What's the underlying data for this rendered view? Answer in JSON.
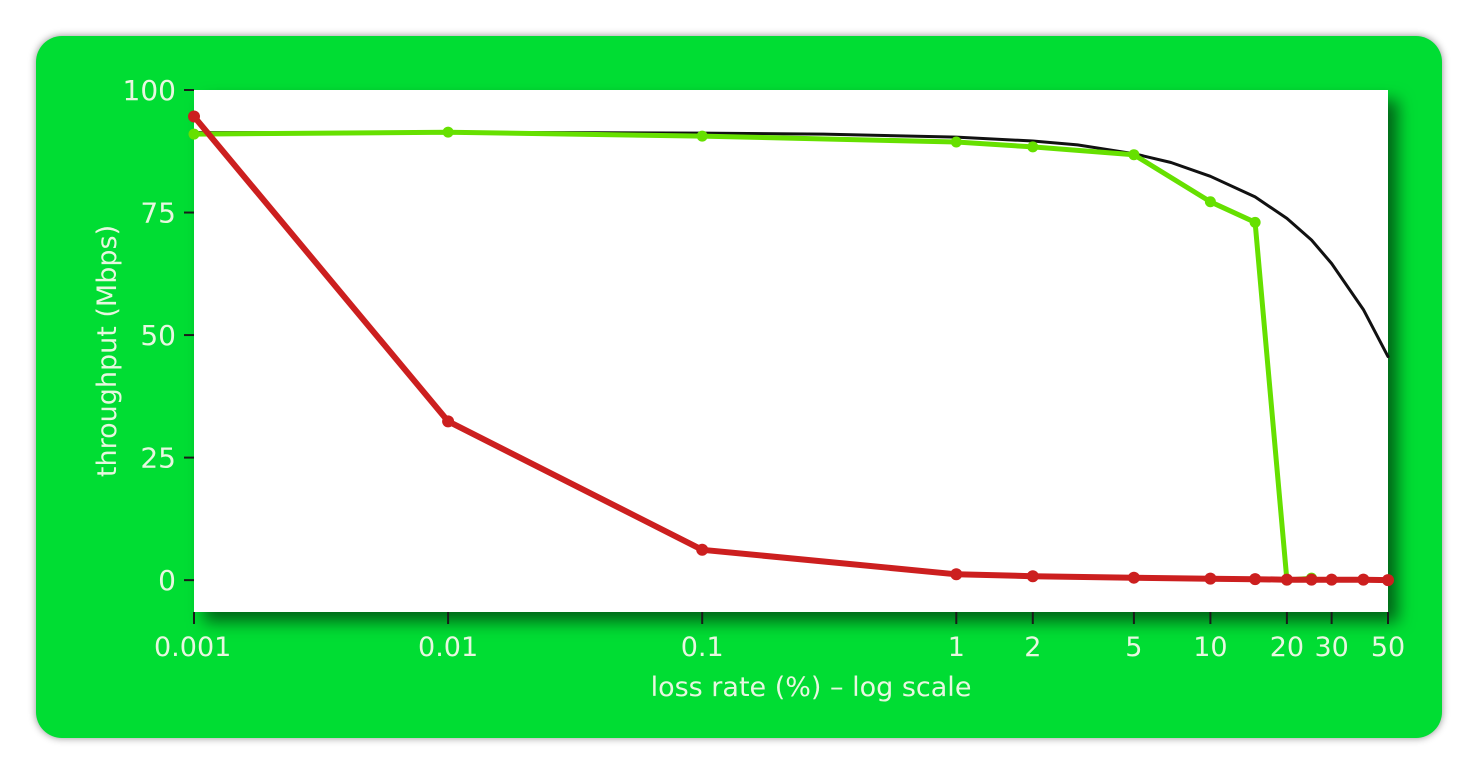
{
  "chart_data": {
    "type": "line",
    "title": "",
    "xlabel": "loss rate (%) – log scale",
    "ylabel": "throughput (Mbps)",
    "x_scale": "log",
    "xlim": [
      0.001,
      50
    ],
    "ylim": [
      -6.5,
      100
    ],
    "grid": false,
    "x_ticks": [
      {
        "value": 0.001,
        "label": "0.001"
      },
      {
        "value": 0.01,
        "label": "0.01"
      },
      {
        "value": 0.1,
        "label": "0.1"
      },
      {
        "value": 1,
        "label": "1"
      },
      {
        "value": 2,
        "label": "2"
      },
      {
        "value": 5,
        "label": "5"
      },
      {
        "value": 10,
        "label": "10"
      },
      {
        "value": 20,
        "label": "20"
      },
      {
        "value": 30,
        "label": "30"
      },
      {
        "value": 50,
        "label": "50"
      }
    ],
    "y_ticks": [
      {
        "value": 0,
        "label": "0"
      },
      {
        "value": 25,
        "label": "25"
      },
      {
        "value": 50,
        "label": "50"
      },
      {
        "value": 75,
        "label": "75"
      },
      {
        "value": 100,
        "label": "100"
      }
    ],
    "series": [
      {
        "color": "#111111",
        "markers": false,
        "x": [
          0.001,
          0.003,
          0.01,
          0.03,
          0.1,
          0.3,
          1,
          2,
          3,
          5,
          7,
          10,
          15,
          20,
          25,
          30,
          40,
          50
        ],
        "y": [
          91.3,
          91.3,
          91.3,
          91.3,
          91.2,
          91,
          90.4,
          89.6,
          88.8,
          87,
          85.2,
          82.4,
          78.2,
          73.8,
          69.4,
          64.6,
          55.2,
          45.6
        ]
      },
      {
        "color": "#66e000",
        "markers": true,
        "x": [
          0.001,
          0.01,
          0.1,
          1,
          2,
          5,
          10,
          15,
          20,
          25
        ],
        "y": [
          91,
          91.4,
          90.6,
          89.4,
          88.4,
          86.8,
          77.2,
          73,
          0,
          0.4
        ]
      },
      {
        "color": "#cc1f1f",
        "markers": true,
        "x": [
          0.001,
          0.01,
          0.1,
          1,
          2,
          5,
          10,
          15,
          20,
          25,
          30,
          40,
          50
        ],
        "y": [
          94.6,
          32.4,
          6.2,
          1.2,
          0.8,
          0.5,
          0.3,
          0.2,
          0.1,
          0.1,
          0.1,
          0.1,
          0
        ]
      }
    ]
  }
}
